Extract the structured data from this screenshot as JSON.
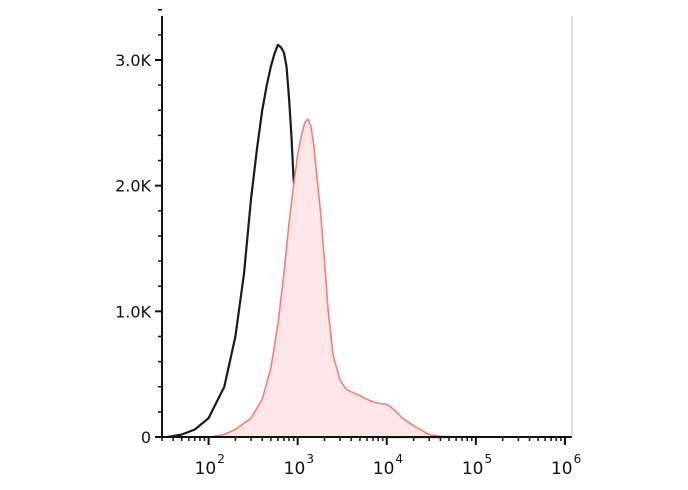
{
  "chart_data": {
    "type": "area",
    "title": "",
    "xlabel": "",
    "ylabel": "",
    "x_scale": "log",
    "xlim": [
      30,
      1200000
    ],
    "ylim": [
      0,
      3500
    ],
    "grid": false,
    "legend": "none",
    "y_ticks": [
      {
        "value": 0,
        "label": "0"
      },
      {
        "value": 1000,
        "label": "1.0K"
      },
      {
        "value": 2000,
        "label": "2.0K"
      },
      {
        "value": 3000,
        "label": "3.0K"
      }
    ],
    "x_ticks": [
      {
        "value": 100,
        "base": "10",
        "exp": "2"
      },
      {
        "value": 1000,
        "base": "10",
        "exp": "3"
      },
      {
        "value": 10000,
        "base": "10",
        "exp": "4"
      },
      {
        "value": 100000,
        "base": "10",
        "exp": "5"
      },
      {
        "value": 1000000,
        "base": "10",
        "exp": "6"
      }
    ],
    "series": [
      {
        "style": "line",
        "color": "#1a1a1a",
        "x": [
          35,
          50,
          70,
          100,
          150,
          200,
          250,
          300,
          350,
          400,
          450,
          500,
          550,
          600,
          650,
          700,
          750,
          800,
          850,
          900,
          1000,
          1100,
          1200,
          1300,
          1400,
          1500,
          1700,
          2000,
          2500,
          3000,
          4000,
          5000,
          7000,
          10000,
          20000,
          50000
        ],
        "y": [
          0,
          20,
          60,
          150,
          400,
          800,
          1300,
          1900,
          2300,
          2600,
          2800,
          2950,
          3050,
          3120,
          3100,
          3060,
          2950,
          2700,
          2400,
          2050,
          1700,
          1400,
          1100,
          800,
          500,
          300,
          150,
          80,
          40,
          25,
          15,
          10,
          5,
          0,
          0,
          0
        ]
      },
      {
        "style": "area",
        "color": "#f08080",
        "fill": "#fde6e6",
        "x": [
          100,
          150,
          200,
          300,
          400,
          500,
          600,
          700,
          800,
          900,
          1000,
          1100,
          1200,
          1300,
          1400,
          1500,
          1600,
          1800,
          2000,
          2200,
          2500,
          3000,
          3500,
          4000,
          5000,
          6000,
          7000,
          8000,
          10000,
          12000,
          15000,
          20000,
          25000,
          30000,
          40000,
          50000,
          60000
        ],
        "y": [
          0,
          20,
          60,
          150,
          300,
          550,
          900,
          1300,
          1700,
          2000,
          2250,
          2400,
          2500,
          2530,
          2480,
          2350,
          2150,
          1800,
          1400,
          1000,
          650,
          450,
          380,
          360,
          330,
          300,
          280,
          270,
          260,
          220,
          150,
          90,
          50,
          20,
          5,
          0,
          0
        ]
      }
    ]
  }
}
